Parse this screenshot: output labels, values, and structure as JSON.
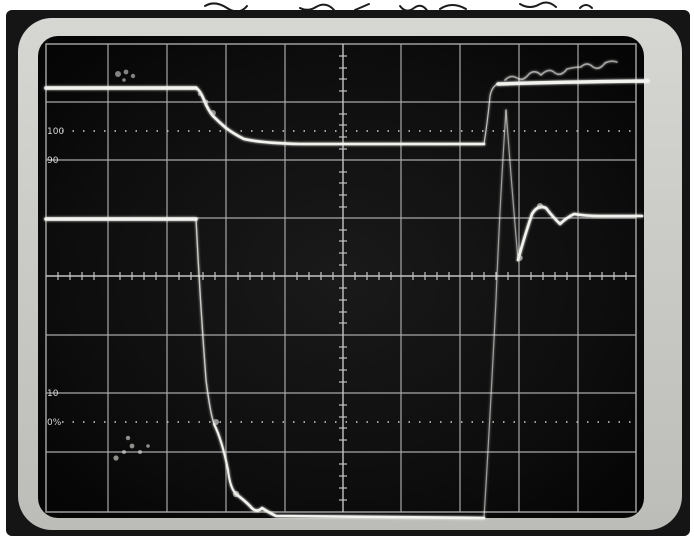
{
  "graticule_labels": {
    "label_100": "100",
    "label_90": "90",
    "label_10": "10",
    "label_0": "0%"
  },
  "colors": {
    "paper": "#ffffff",
    "bezel": "#cfcfcc",
    "screen": "#0b0b0b",
    "grid": "#bdbdbd",
    "trace": "#f2f2ee"
  },
  "icons": {
    "handwriting": "handwritten-pen-marks"
  }
}
